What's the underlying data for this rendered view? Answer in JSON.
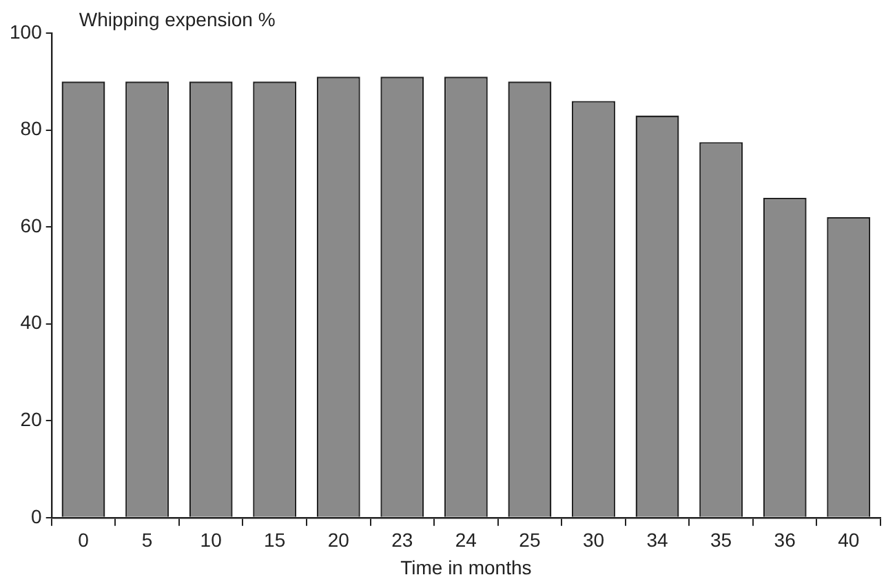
{
  "chart_data": {
    "type": "bar",
    "ylabel": "Whipping expension %",
    "xlabel": "Time in months",
    "categories": [
      "0",
      "5",
      "10",
      "15",
      "20",
      "23",
      "24",
      "25",
      "30",
      "34",
      "35",
      "36",
      "40"
    ],
    "values": [
      90,
      90,
      90,
      90,
      91,
      91,
      91,
      90,
      86,
      83,
      77.5,
      66,
      62
    ],
    "color": "#8a8a8a",
    "ylim": [
      0,
      100
    ],
    "yticks": [
      0,
      20,
      40,
      60,
      80,
      100
    ],
    "grid": false,
    "legend": false
  }
}
